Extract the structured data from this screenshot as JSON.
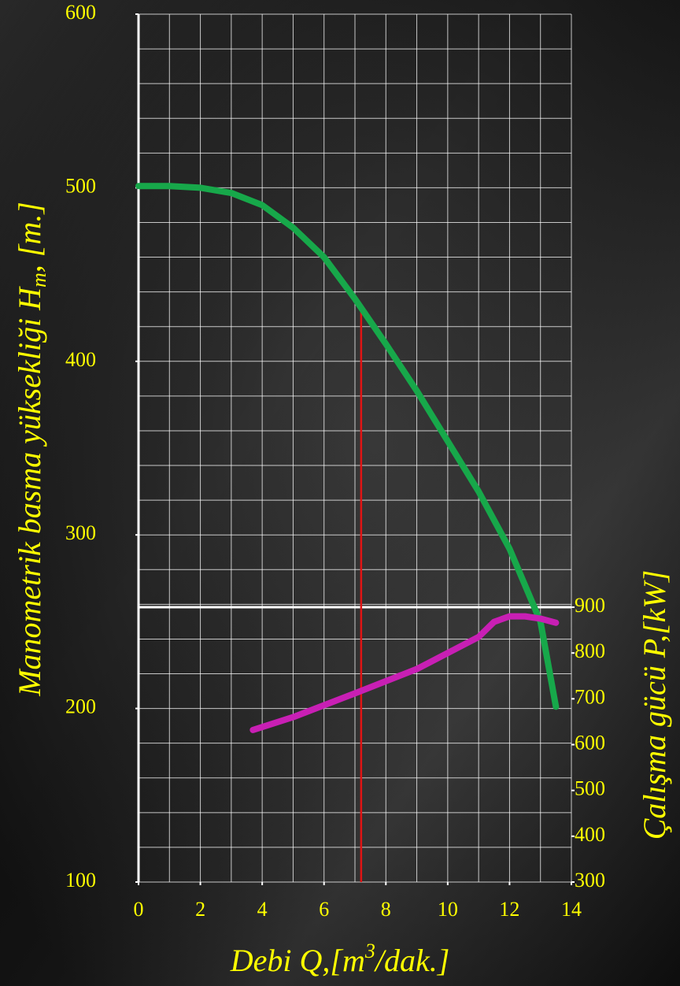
{
  "chart_data": {
    "type": "line",
    "x_label": {
      "text": "Debi Q,[m",
      "sup": "3",
      "tail": "/dak.]"
    },
    "y_label": {
      "text": "Manometrik basma yüksekliği H",
      "sub": "m",
      "tail": ", [m.]"
    },
    "y2_label": "Çalışma gücü P,[kW]",
    "xlim": [
      0,
      14
    ],
    "xticks": [
      0,
      2,
      4,
      6,
      8,
      10,
      12,
      14
    ],
    "ylim": [
      100,
      600
    ],
    "yticks": [
      100,
      200,
      300,
      400,
      500,
      600
    ],
    "y2lim": [
      300,
      900
    ],
    "y2ticks": [
      300,
      400,
      500,
      600,
      700,
      800,
      900
    ],
    "grid": true,
    "x_grid_step": 1,
    "y_grid_step": 20,
    "series": [
      {
        "color": "#17a84a",
        "x": [
          0,
          1,
          2,
          3,
          4,
          5,
          6,
          7,
          8,
          9,
          10,
          11,
          12,
          13,
          13.5
        ],
        "values": [
          501,
          501,
          500,
          497,
          490,
          477,
          460,
          436,
          410,
          383,
          354,
          325,
          292,
          250,
          201
        ]
      },
      {
        "color": "#c81fb4",
        "axis": "y2",
        "x": [
          3.7,
          5,
          7,
          9,
          11,
          11.5,
          12,
          12.5,
          13,
          13.5
        ],
        "values": [
          632,
          660,
          712,
          765,
          835,
          868,
          880,
          880,
          875,
          866
        ]
      }
    ],
    "marker_x": 7.2,
    "marker_color": "#e01414"
  }
}
